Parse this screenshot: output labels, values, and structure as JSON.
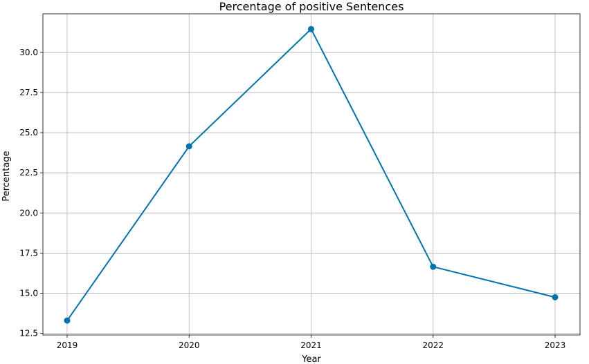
{
  "chart_data": {
    "type": "line",
    "title": "Percentage of positive Sentences",
    "xlabel": "Year",
    "ylabel": "Percentage",
    "categories": [
      "2019",
      "2020",
      "2021",
      "2022",
      "2023"
    ],
    "series": [
      {
        "values": [
          13.3,
          24.15,
          31.45,
          16.65,
          14.75
        ],
        "color": "#0072b2",
        "marker": "circle"
      }
    ],
    "yticks": [
      "12.5",
      "15.0",
      "17.5",
      "20.0",
      "22.5",
      "25.0",
      "27.5",
      "30.0"
    ],
    "ylim": [
      12.4,
      32.4
    ],
    "grid": true
  }
}
